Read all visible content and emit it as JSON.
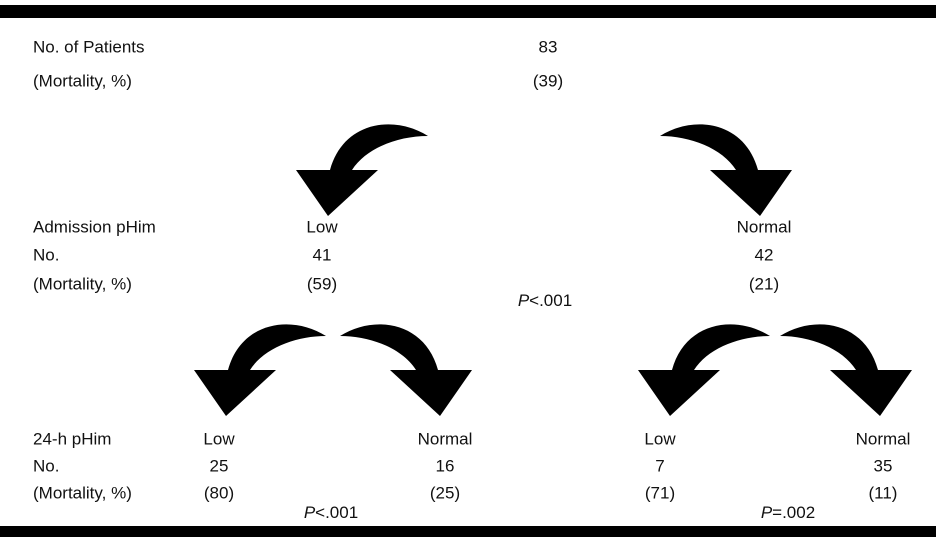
{
  "rows": {
    "top": [
      "No. of Patients",
      "(Mortality, %)"
    ],
    "admission": [
      "Admission pHim",
      "No.",
      "(Mortality, %)"
    ],
    "h24": [
      "24-h pHim",
      "No.",
      "(Mortality, %)"
    ]
  },
  "root": {
    "count": "83",
    "mortality": "(39)"
  },
  "admission": [
    {
      "label": "Low",
      "count": "41",
      "mortality": "(59)"
    },
    {
      "label": "Normal",
      "count": "42",
      "mortality": "(21)"
    }
  ],
  "h24": [
    {
      "label": "Low",
      "count": "25",
      "mortality": "(80)"
    },
    {
      "label": "Normal",
      "count": "16",
      "mortality": "(25)"
    },
    {
      "label": "Low",
      "count": "7",
      "mortality": "(71)"
    },
    {
      "label": "Normal",
      "count": "35",
      "mortality": "(11)"
    }
  ],
  "pvalues": {
    "admission": {
      "symbol": "P",
      "text": "<.001"
    },
    "low": {
      "symbol": "P",
      "text": "<.001"
    },
    "normal": {
      "symbol": "P",
      "text": "=.002"
    }
  }
}
